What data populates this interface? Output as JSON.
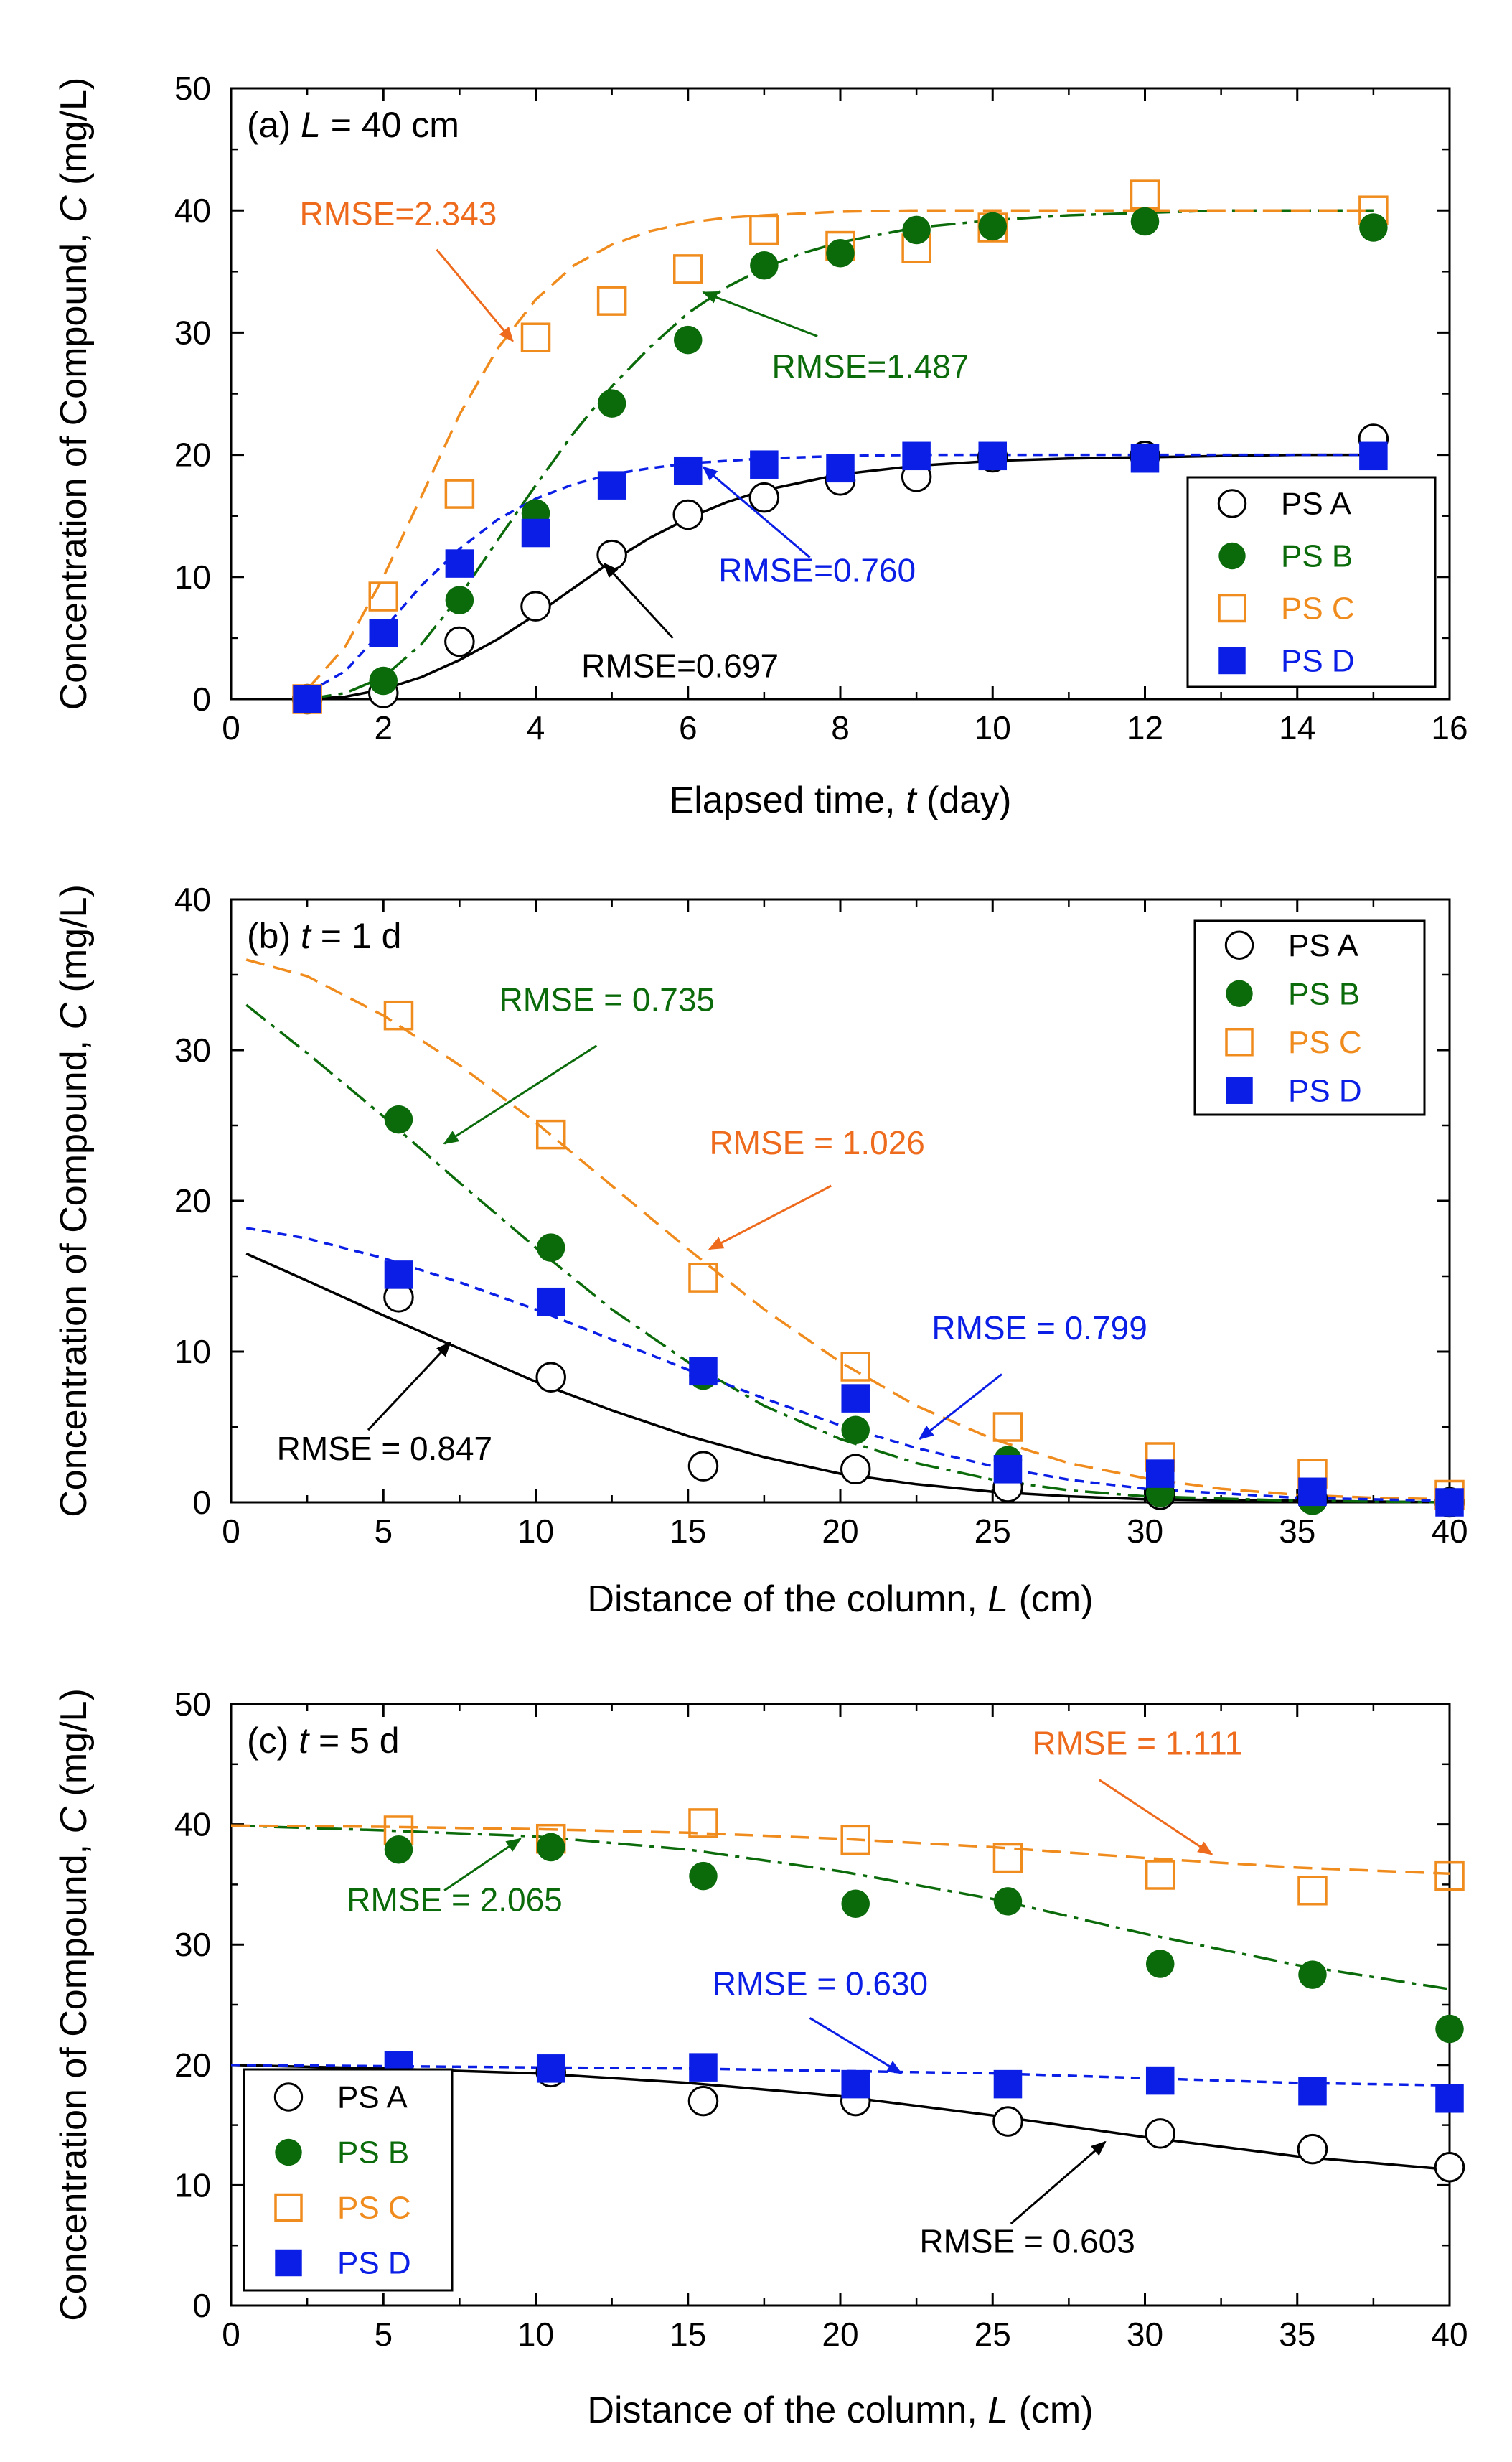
{
  "colors": {
    "A": "#000000",
    "B": "#0b6b0b",
    "C": "#f08c1e",
    "D": "#0a1ee6",
    "rmseC": "#ee6a1c"
  },
  "chart_data": [
    {
      "type": "scatter",
      "panel_label": {
        "prefix": "(a) ",
        "var": "L",
        "suffix": " = 40 cm"
      },
      "xlabel": {
        "text": "Elapsed time, ",
        "var": "t",
        "suffix": " (day)"
      },
      "ylabel": {
        "text": "Concentration of Compound,  ",
        "var": "C",
        "suffix": " (mg/L)"
      },
      "xlim": [
        0,
        16
      ],
      "ylim": [
        0,
        50
      ],
      "xticks": [
        "0",
        "2",
        "4",
        "6",
        "8",
        "10",
        "12",
        "14",
        "16"
      ],
      "yticks": [
        "0",
        "10",
        "20",
        "30",
        "40",
        "50"
      ],
      "legend": {
        "position": "bottom-right",
        "entries": [
          "PS A",
          "PS B",
          "PS C",
          "PS D"
        ]
      },
      "series": [
        {
          "name": "PS A",
          "x": [
            1,
            2,
            3,
            4,
            5,
            6,
            7,
            8,
            9,
            10,
            12,
            15
          ],
          "y": [
            0,
            0.5,
            4.7,
            7.6,
            11.8,
            15.1,
            16.5,
            17.9,
            18.2,
            19.8,
            19.9,
            21.3
          ]
        },
        {
          "name": "PS B",
          "x": [
            1,
            2,
            3,
            4,
            5,
            6,
            7,
            8,
            9,
            10,
            12,
            15
          ],
          "y": [
            0,
            1.5,
            8.1,
            15.2,
            24.2,
            29.4,
            35.5,
            36.5,
            38.4,
            38.7,
            39.1,
            38.6
          ]
        },
        {
          "name": "PS C",
          "x": [
            1,
            2,
            3,
            4,
            5,
            6,
            7,
            8,
            9,
            10,
            12,
            15
          ],
          "y": [
            0,
            8.4,
            16.8,
            29.6,
            32.6,
            35.2,
            38.4,
            37.1,
            36.9,
            38.6,
            41.3,
            40
          ]
        },
        {
          "name": "PS D",
          "x": [
            1,
            2,
            3,
            4,
            5,
            6,
            7,
            8,
            9,
            10,
            12,
            15
          ],
          "y": [
            0,
            5.4,
            11.1,
            13.6,
            17.5,
            18.7,
            19.2,
            18.9,
            19.9,
            19.9,
            19.7,
            19.9
          ]
        }
      ],
      "fits": [
        {
          "name": "PS A",
          "x": [
            1,
            1.5,
            2,
            2.5,
            3,
            3.5,
            4,
            4.5,
            5,
            5.5,
            6,
            6.5,
            7,
            8,
            9,
            10,
            11,
            12,
            13,
            14,
            15
          ],
          "y": [
            0,
            0.2,
            0.8,
            1.8,
            3.2,
            4.9,
            6.9,
            9.1,
            11.3,
            13.2,
            14.8,
            16.1,
            17.1,
            18.4,
            19.1,
            19.5,
            19.7,
            19.8,
            19.9,
            20,
            20
          ]
        },
        {
          "name": "PS B",
          "x": [
            1,
            1.5,
            2,
            2.5,
            3,
            3.5,
            4,
            4.5,
            5,
            5.5,
            6,
            6.5,
            7,
            7.5,
            8,
            9,
            10,
            11,
            12,
            13,
            15
          ],
          "y": [
            0,
            0.5,
            1.8,
            4.5,
            8.4,
            13,
            17.5,
            21.8,
            25.6,
            28.8,
            31.6,
            33.7,
            35.3,
            36.5,
            37.4,
            38.6,
            39.2,
            39.6,
            39.8,
            40,
            40
          ]
        },
        {
          "name": "PS C",
          "x": [
            1,
            1.5,
            2,
            2.5,
            3,
            3.5,
            4,
            4.5,
            5,
            5.5,
            6,
            6.5,
            7,
            8,
            9,
            10,
            11,
            12,
            15
          ],
          "y": [
            0.8,
            4.3,
            10,
            16.6,
            23.3,
            28.7,
            32.7,
            35.5,
            37.2,
            38.3,
            39,
            39.4,
            39.6,
            39.9,
            40,
            40,
            40,
            40,
            40
          ]
        },
        {
          "name": "PS D",
          "x": [
            1,
            1.5,
            2,
            2.5,
            3,
            3.5,
            4,
            4.5,
            5,
            5.5,
            6,
            6.5,
            7,
            8,
            9,
            10,
            12,
            15
          ],
          "y": [
            0.5,
            2.3,
            5.7,
            9.3,
            12.3,
            14.7,
            16.4,
            17.6,
            18.4,
            18.9,
            19.3,
            19.5,
            19.7,
            19.9,
            20,
            20,
            20,
            20
          ]
        }
      ],
      "annotations": [
        {
          "series": "PS C",
          "text": "RMSE=2.343",
          "text_xy": [
            0.9,
            38.8
          ],
          "arrow_from": [
            2.7,
            36.8
          ],
          "arrow_to": [
            3.7,
            29.3
          ]
        },
        {
          "series": "PS B",
          "text": "RMSE=1.487",
          "text_xy": [
            7.1,
            26.3
          ],
          "arrow_from": [
            7.7,
            29.7
          ],
          "arrow_to": [
            6.2,
            33.3
          ]
        },
        {
          "series": "PS D",
          "text": "RMSE=0.760",
          "text_xy": [
            6.4,
            9.6
          ],
          "arrow_from": [
            7.6,
            11.6
          ],
          "arrow_to": [
            6.2,
            19.0
          ]
        },
        {
          "series": "PS A",
          "text": "RMSE=0.697",
          "text_xy": [
            4.6,
            1.8
          ],
          "arrow_from": [
            5.8,
            5.0
          ],
          "arrow_to": [
            4.9,
            11.1
          ]
        }
      ]
    },
    {
      "type": "scatter",
      "panel_label": {
        "prefix": "(b) ",
        "var": "t",
        "suffix": " = 1 d"
      },
      "xlabel": {
        "text": "Distance of the column, ",
        "var": "L",
        "suffix": " (cm)"
      },
      "ylabel": {
        "text": "Concentration of Compound,  ",
        "var": "C",
        "suffix": " (mg/L)"
      },
      "xlim": [
        0,
        40
      ],
      "ylim": [
        0,
        40
      ],
      "xticks": [
        "0",
        "5",
        "10",
        "15",
        "20",
        "25",
        "30",
        "35",
        "40"
      ],
      "yticks": [
        "0",
        "10",
        "20",
        "30",
        "40"
      ],
      "legend": {
        "position": "top-right",
        "entries": [
          "PS A",
          "PS B",
          "PS C",
          "PS D"
        ]
      },
      "series": [
        {
          "name": "PS A",
          "x": [
            5.5,
            10.5,
            15.5,
            20.5,
            25.5,
            30.5,
            35.5,
            40
          ],
          "y": [
            13.6,
            8.3,
            2.4,
            2.2,
            1.0,
            0.5,
            0.2,
            0
          ]
        },
        {
          "name": "PS B",
          "x": [
            5.5,
            10.5,
            15.5,
            20.5,
            25.5,
            30.5,
            35.5,
            40
          ],
          "y": [
            25.4,
            16.9,
            8.4,
            4.8,
            2.8,
            0.6,
            0.1,
            0
          ]
        },
        {
          "name": "PS C",
          "x": [
            5.5,
            10.5,
            15.5,
            20.5,
            25.5,
            30.5,
            35.5,
            40
          ],
          "y": [
            32.3,
            24.4,
            14.9,
            9.0,
            5.0,
            3.0,
            1.9,
            0.5
          ]
        },
        {
          "name": "PS D",
          "x": [
            5.5,
            10.5,
            15.5,
            20.5,
            25.5,
            30.5,
            35.5,
            40
          ],
          "y": [
            15.1,
            13.3,
            8.7,
            6.9,
            2.2,
            1.9,
            0.7,
            0
          ]
        }
      ],
      "fits": [
        {
          "name": "PS A",
          "x": [
            0.5,
            2.5,
            5,
            7.5,
            10,
            12.5,
            15,
            17.5,
            20,
            22.5,
            25,
            27.5,
            30,
            35,
            40
          ],
          "y": [
            16.5,
            14.7,
            12.4,
            10.2,
            8.0,
            6.1,
            4.4,
            3.0,
            1.9,
            1.2,
            0.7,
            0.4,
            0.2,
            0.1,
            0
          ]
        },
        {
          "name": "PS B",
          "x": [
            0.5,
            2.5,
            5,
            7.5,
            10,
            12.5,
            15,
            17.5,
            20,
            22.5,
            25,
            27.5,
            30,
            35,
            40
          ],
          "y": [
            33.0,
            29.8,
            25.6,
            21.2,
            16.9,
            12.8,
            9.3,
            6.4,
            4.2,
            2.6,
            1.5,
            0.8,
            0.4,
            0.1,
            0
          ]
        },
        {
          "name": "PS C",
          "x": [
            0.5,
            2.5,
            5,
            7.5,
            10,
            12.5,
            15,
            17.5,
            20,
            22.5,
            25,
            27.5,
            30,
            32.5,
            35,
            37.5,
            40
          ],
          "y": [
            36.0,
            34.9,
            32.3,
            29.0,
            25.2,
            21.0,
            16.8,
            12.8,
            9.3,
            6.4,
            4.2,
            2.6,
            1.6,
            0.9,
            0.5,
            0.3,
            0.2
          ]
        },
        {
          "name": "PS D",
          "x": [
            0.5,
            2.5,
            5,
            7.5,
            10,
            12.5,
            15,
            17.5,
            20,
            22.5,
            25,
            27.5,
            30,
            35,
            40
          ],
          "y": [
            18.2,
            17.5,
            16.2,
            14.6,
            12.8,
            10.8,
            8.8,
            6.9,
            5.1,
            3.6,
            2.4,
            1.5,
            0.9,
            0.3,
            0.1
          ]
        }
      ],
      "annotations": [
        {
          "series": "PS B",
          "text": "RMSE = 0.735",
          "text_xy": [
            8.8,
            32.6
          ],
          "arrow_from": [
            12.0,
            30.3
          ],
          "arrow_to": [
            7.0,
            23.8
          ]
        },
        {
          "series": "PS C",
          "text": "RMSE = 1.026",
          "text_xy": [
            15.7,
            23.1
          ],
          "arrow_from": [
            19.7,
            21.0
          ],
          "arrow_to": [
            15.7,
            16.8
          ]
        },
        {
          "series": "PS D",
          "text": "RMSE = 0.799",
          "text_xy": [
            23.0,
            10.8
          ],
          "arrow_from": [
            25.3,
            8.5
          ],
          "arrow_to": [
            22.6,
            4.2
          ]
        },
        {
          "series": "PS A",
          "text": "RMSE = 0.847",
          "text_xy": [
            1.5,
            2.8
          ],
          "arrow_from": [
            4.5,
            4.8
          ],
          "arrow_to": [
            7.2,
            10.6
          ]
        }
      ]
    },
    {
      "type": "scatter",
      "panel_label": {
        "prefix": "(c) ",
        "var": "t",
        "suffix": " = 5 d"
      },
      "xlabel": {
        "text": "Distance of the column, ",
        "var": "L",
        "suffix": " (cm)"
      },
      "ylabel": {
        "text": "Concentration of Compound,  ",
        "var": "C",
        "suffix": " (mg/L)"
      },
      "xlim": [
        0,
        40
      ],
      "ylim": [
        0,
        50
      ],
      "xticks": [
        "0",
        "5",
        "10",
        "15",
        "20",
        "25",
        "30",
        "35",
        "40"
      ],
      "yticks": [
        "0",
        "10",
        "20",
        "30",
        "40",
        "50"
      ],
      "legend": {
        "position": "bottom-left",
        "entries": [
          "PS A",
          "PS B",
          "PS C",
          "PS D"
        ]
      },
      "series": [
        {
          "name": "PS A",
          "x": [
            5.5,
            10.5,
            15.5,
            20.5,
            25.5,
            30.5,
            35.5,
            40
          ],
          "y": [
            19.2,
            19.4,
            17.0,
            17.0,
            15.3,
            14.3,
            13.0,
            11.5
          ]
        },
        {
          "name": "PS B",
          "x": [
            5.5,
            10.5,
            15.5,
            20.5,
            25.5,
            30.5,
            35.5,
            40
          ],
          "y": [
            37.9,
            38.1,
            35.7,
            33.4,
            33.6,
            28.4,
            27.5,
            23.0
          ]
        },
        {
          "name": "PS C",
          "x": [
            5.5,
            10.5,
            15.5,
            20.5,
            25.5,
            30.5,
            35.5,
            40
          ],
          "y": [
            39.5,
            38.8,
            40.1,
            38.7,
            37.2,
            35.8,
            34.5,
            35.7
          ]
        },
        {
          "name": "PS D",
          "x": [
            5.5,
            10.5,
            15.5,
            20.5,
            25.5,
            30.5,
            35.5,
            40
          ],
          "y": [
            20.0,
            19.7,
            19.8,
            18.4,
            18.4,
            18.7,
            17.8,
            17.2
          ]
        }
      ],
      "fits": [
        {
          "name": "PS A",
          "x": [
            0,
            5,
            10,
            15,
            20,
            25,
            30,
            35,
            40
          ],
          "y": [
            20.0,
            19.7,
            19.3,
            18.5,
            17.4,
            15.8,
            14.0,
            12.4,
            11.3
          ]
        },
        {
          "name": "PS B",
          "x": [
            0,
            5,
            10,
            15,
            20,
            25,
            30,
            35,
            40
          ],
          "y": [
            39.9,
            39.5,
            39.0,
            37.9,
            36.1,
            33.8,
            30.9,
            28.3,
            26.3
          ]
        },
        {
          "name": "PS C",
          "x": [
            0,
            5,
            10,
            15,
            20,
            25,
            30,
            35,
            40
          ],
          "y": [
            39.9,
            39.8,
            39.6,
            39.3,
            38.8,
            38.1,
            37.2,
            36.4,
            35.9
          ]
        },
        {
          "name": "PS D",
          "x": [
            0,
            5,
            10,
            15,
            20,
            25,
            30,
            35,
            40
          ],
          "y": [
            20.0,
            19.9,
            19.8,
            19.7,
            19.5,
            19.3,
            18.9,
            18.5,
            18.3
          ]
        }
      ],
      "annotations": [
        {
          "series": "PS C",
          "text": "RMSE = 1.111",
          "text_xy": [
            26.3,
            45.8
          ],
          "arrow_from": [
            28.5,
            43.7
          ],
          "arrow_to": [
            32.2,
            37.5
          ]
        },
        {
          "series": "PS B",
          "text": "RMSE = 2.065",
          "text_xy": [
            3.8,
            32.8
          ],
          "arrow_from": [
            7.0,
            34.5
          ],
          "arrow_to": [
            9.5,
            38.8
          ]
        },
        {
          "series": "PS D",
          "text": "RMSE = 0.630",
          "text_xy": [
            15.8,
            25.8
          ],
          "arrow_from": [
            19.0,
            23.9
          ],
          "arrow_to": [
            22.0,
            19.3
          ]
        },
        {
          "series": "PS A",
          "text": "RMSE = 0.603",
          "text_xy": [
            22.6,
            4.4
          ],
          "arrow_from": [
            25.6,
            6.8
          ],
          "arrow_to": [
            28.7,
            13.6
          ]
        }
      ]
    }
  ]
}
